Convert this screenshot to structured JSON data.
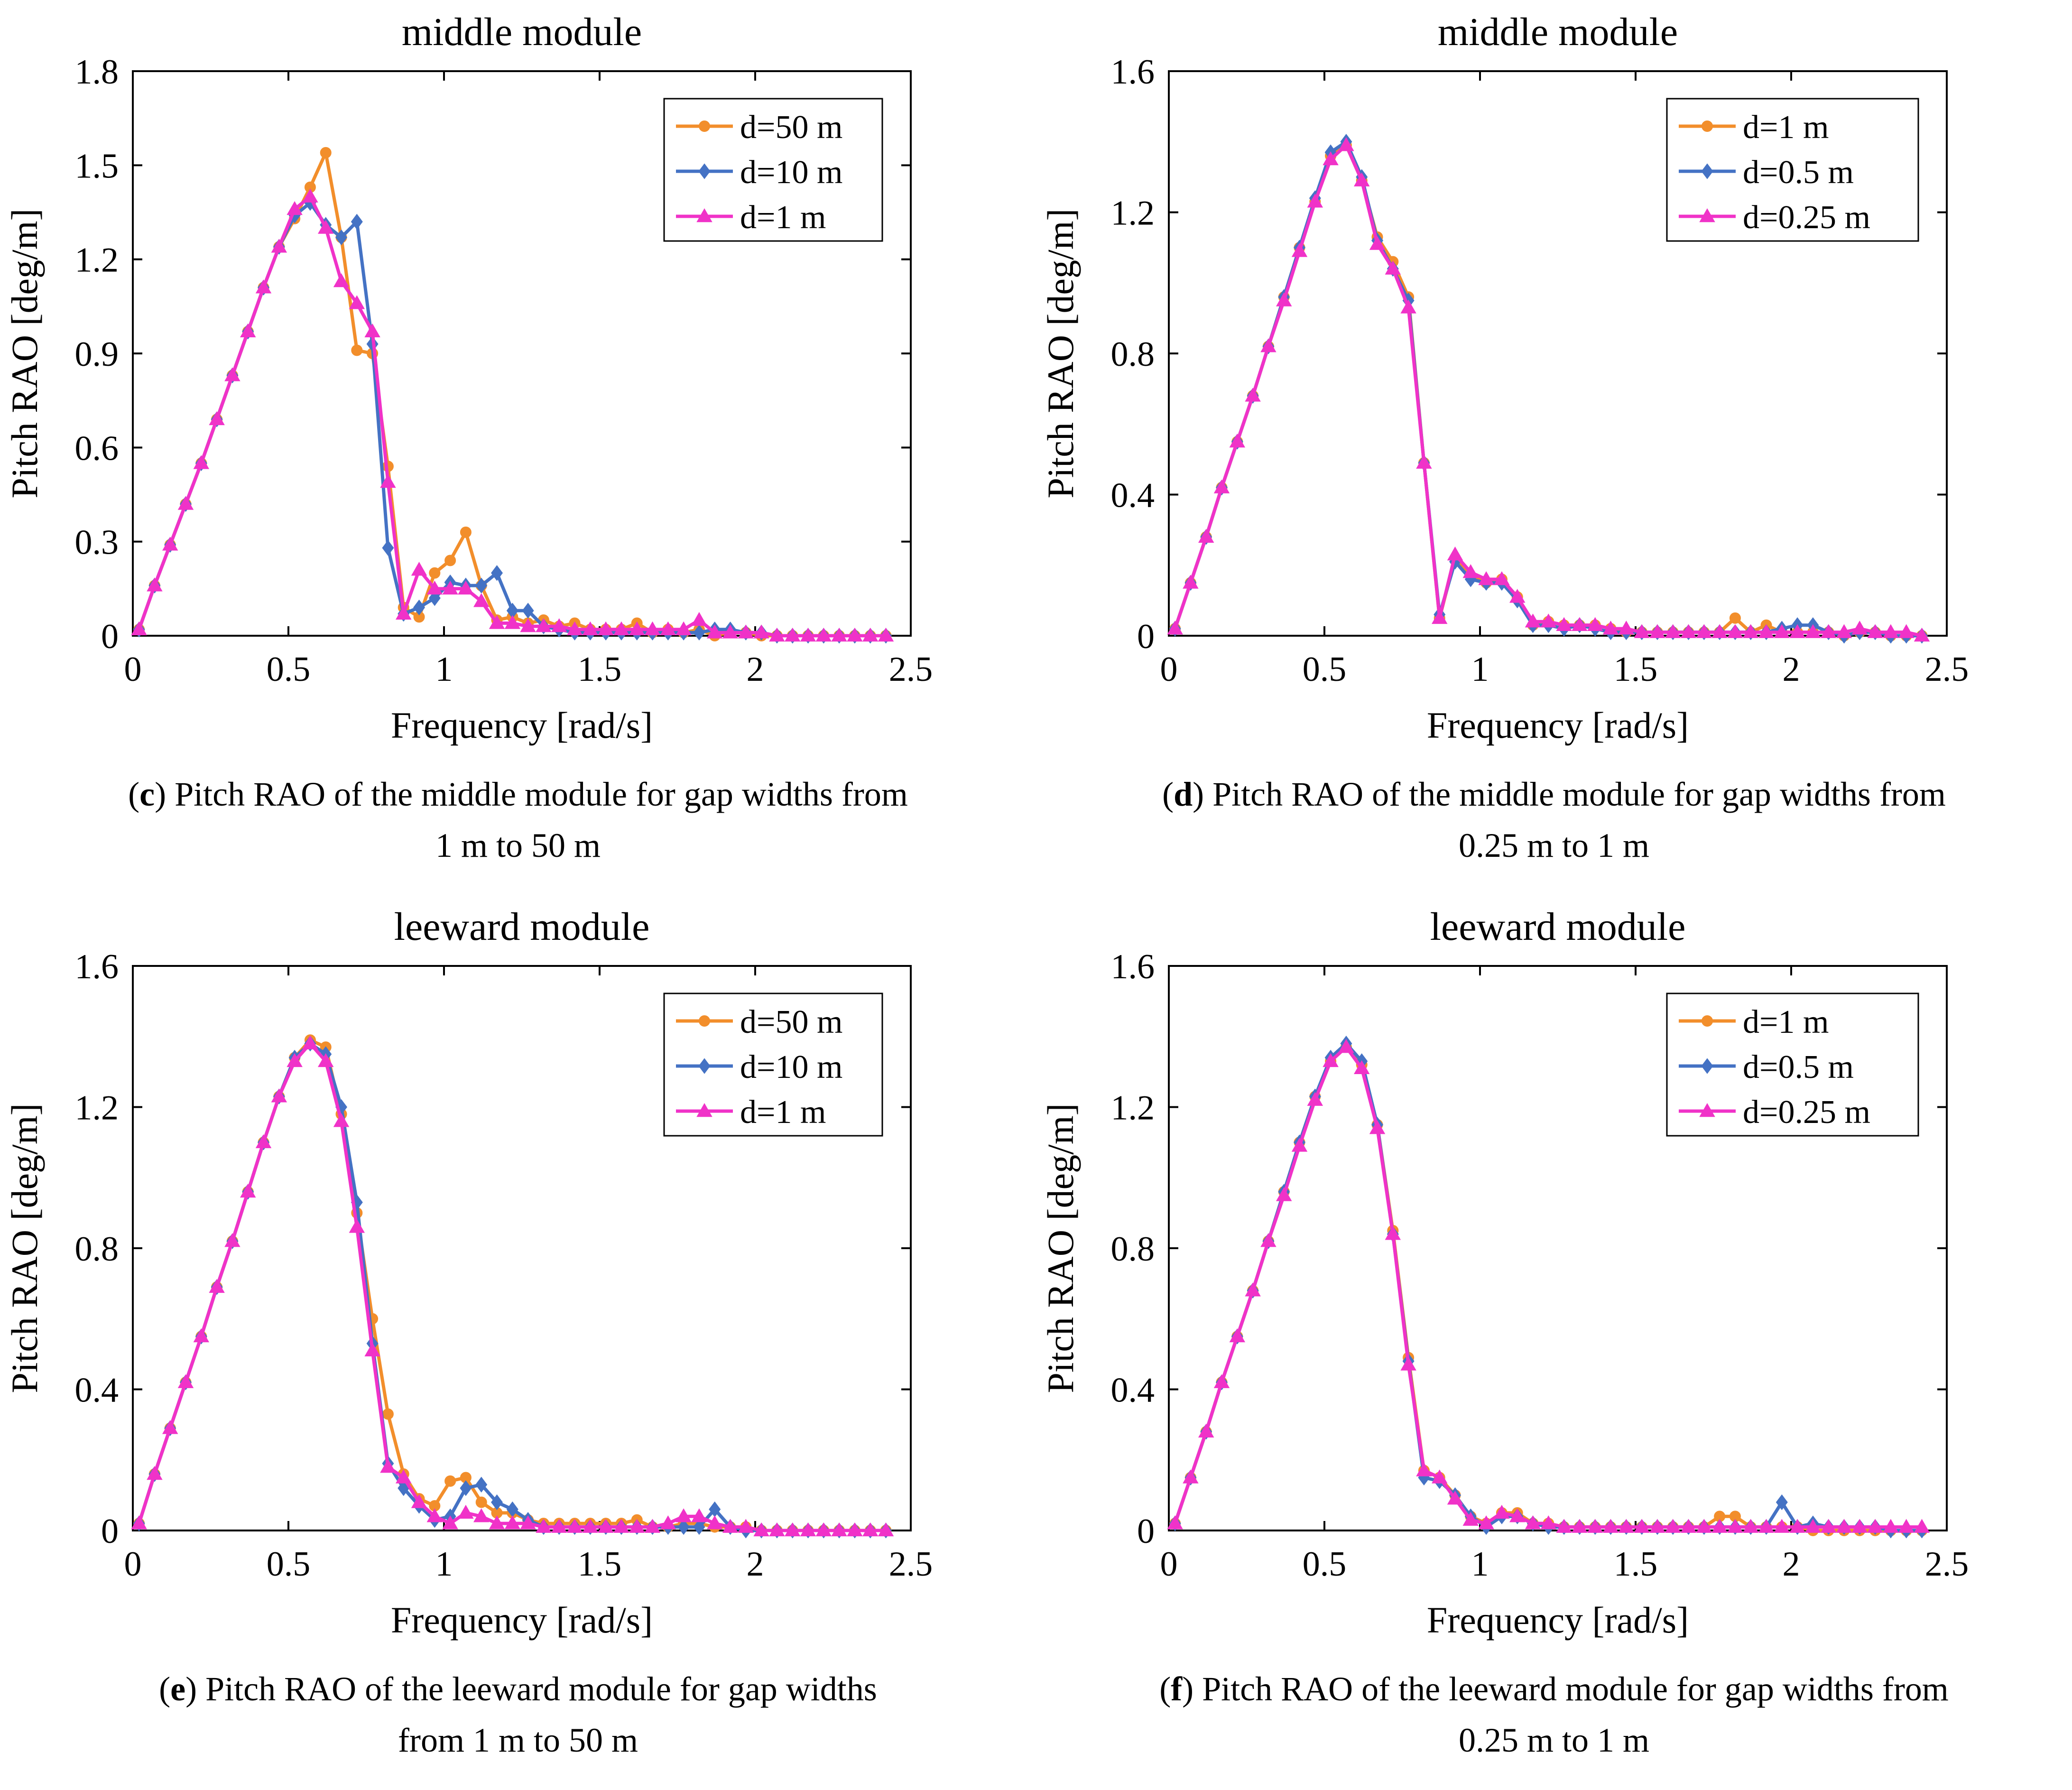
{
  "colors": {
    "orange": "#F28E2B",
    "blue": "#4472C4",
    "magenta": "#F032C8"
  },
  "panels": [
    {
      "caption_letter": "c",
      "caption_text": " Pitch RAO of the middle module for gap widths from",
      "caption_line2": "1 m to 50 m",
      "chart_data": {
        "type": "line",
        "title": "middle module",
        "xlabel": "Frequency [rad/s]",
        "ylabel": "Pitch RAO  [deg/m]",
        "xlim": [
          0,
          2.5
        ],
        "ylim": [
          0,
          1.8
        ],
        "xticks": [
          "0",
          "0.5",
          "1",
          "1.5",
          "2",
          "2.5"
        ],
        "yticks": [
          "0",
          "0.3",
          "0.6",
          "0.9",
          "1.2",
          "1.5",
          "1.8"
        ],
        "legend_position": "top-right",
        "x": [
          0.02,
          0.07,
          0.12,
          0.17,
          0.22,
          0.27,
          0.32,
          0.37,
          0.42,
          0.47,
          0.52,
          0.57,
          0.62,
          0.67,
          0.72,
          0.77,
          0.82,
          0.87,
          0.92,
          0.97,
          1.02,
          1.07,
          1.12,
          1.17,
          1.22,
          1.27,
          1.32,
          1.37,
          1.42,
          1.47,
          1.52,
          1.57,
          1.62,
          1.67,
          1.72,
          1.77,
          1.82,
          1.87,
          1.92,
          1.97,
          2.02,
          2.07,
          2.12,
          2.17,
          2.22,
          2.27,
          2.32,
          2.37,
          2.42
        ],
        "series": [
          {
            "name": "d=50 m",
            "color": "orange",
            "marker": "circle",
            "values": [
              0.02,
              0.16,
              0.29,
              0.42,
              0.55,
              0.69,
              0.83,
              0.97,
              1.11,
              1.24,
              1.33,
              1.43,
              1.54,
              1.27,
              0.91,
              0.9,
              0.54,
              0.09,
              0.06,
              0.2,
              0.24,
              0.33,
              0.16,
              0.05,
              0.06,
              0.04,
              0.05,
              0.03,
              0.04,
              0.02,
              0.02,
              0.02,
              0.04,
              0.01,
              0.02,
              0.01,
              0.02,
              0.0,
              0.01,
              0.01,
              0.0,
              0.0,
              0.0,
              0.0,
              0.0,
              0.0,
              0.0,
              0.0,
              0.0
            ]
          },
          {
            "name": "d=10 m",
            "color": "blue",
            "marker": "diamond",
            "values": [
              0.02,
              0.16,
              0.29,
              0.42,
              0.55,
              0.69,
              0.83,
              0.97,
              1.11,
              1.24,
              1.34,
              1.38,
              1.31,
              1.27,
              1.32,
              0.93,
              0.28,
              0.07,
              0.09,
              0.12,
              0.17,
              0.16,
              0.16,
              0.2,
              0.08,
              0.08,
              0.03,
              0.02,
              0.01,
              0.01,
              0.01,
              0.01,
              0.01,
              0.01,
              0.01,
              0.01,
              0.01,
              0.02,
              0.02,
              0.01,
              0.01,
              0.0,
              0.0,
              0.0,
              0.0,
              0.0,
              0.0,
              0.0,
              0.0
            ]
          },
          {
            "name": "d=1 m",
            "color": "magenta",
            "marker": "triangle",
            "values": [
              0.02,
              0.16,
              0.29,
              0.42,
              0.55,
              0.69,
              0.83,
              0.97,
              1.11,
              1.24,
              1.36,
              1.4,
              1.3,
              1.13,
              1.06,
              0.97,
              0.49,
              0.07,
              0.21,
              0.15,
              0.15,
              0.15,
              0.11,
              0.04,
              0.04,
              0.03,
              0.03,
              0.03,
              0.02,
              0.02,
              0.02,
              0.02,
              0.02,
              0.02,
              0.02,
              0.02,
              0.05,
              0.01,
              0.01,
              0.01,
              0.01,
              0.0,
              0.0,
              0.0,
              0.0,
              0.0,
              0.0,
              0.0,
              0.0
            ]
          }
        ]
      }
    },
    {
      "caption_letter": "d",
      "caption_text": " Pitch RAO of the middle module for gap widths from",
      "caption_line2": "0.25 m to 1 m",
      "chart_data": {
        "type": "line",
        "title": "middle module",
        "xlabel": "Frequency [rad/s]",
        "ylabel": "Pitch RAO  [deg/m]",
        "xlim": [
          0,
          2.5
        ],
        "ylim": [
          0,
          1.6
        ],
        "xticks": [
          "0",
          "0.5",
          "1",
          "1.5",
          "2",
          "2.5"
        ],
        "yticks": [
          "0",
          "0.4",
          "0.8",
          "1.2",
          "1.6"
        ],
        "legend_position": "top-right",
        "x": [
          0.02,
          0.07,
          0.12,
          0.17,
          0.22,
          0.27,
          0.32,
          0.37,
          0.42,
          0.47,
          0.52,
          0.57,
          0.62,
          0.67,
          0.72,
          0.77,
          0.82,
          0.87,
          0.92,
          0.97,
          1.02,
          1.07,
          1.12,
          1.17,
          1.22,
          1.27,
          1.32,
          1.37,
          1.42,
          1.47,
          1.52,
          1.57,
          1.62,
          1.67,
          1.72,
          1.77,
          1.82,
          1.87,
          1.92,
          1.97,
          2.02,
          2.07,
          2.12,
          2.17,
          2.22,
          2.27,
          2.32,
          2.37,
          2.42
        ],
        "series": [
          {
            "name": "d=1 m",
            "color": "orange",
            "marker": "circle",
            "values": [
              0.02,
              0.15,
              0.28,
              0.42,
              0.55,
              0.68,
              0.82,
              0.96,
              1.1,
              1.23,
              1.36,
              1.39,
              1.29,
              1.13,
              1.06,
              0.96,
              0.49,
              0.05,
              0.22,
              0.17,
              0.15,
              0.16,
              0.11,
              0.03,
              0.04,
              0.03,
              0.03,
              0.03,
              0.02,
              0.01,
              0.01,
              0.01,
              0.01,
              0.01,
              0.01,
              0.01,
              0.05,
              0.01,
              0.03,
              0.01,
              0.01,
              0.01,
              0.01,
              0.0,
              0.01,
              0.01,
              0.0,
              0.0,
              0.0
            ]
          },
          {
            "name": "d=0.5 m",
            "color": "blue",
            "marker": "diamond",
            "values": [
              0.02,
              0.15,
              0.28,
              0.42,
              0.55,
              0.68,
              0.82,
              0.96,
              1.1,
              1.24,
              1.37,
              1.4,
              1.3,
              1.12,
              1.04,
              0.95,
              0.49,
              0.06,
              0.21,
              0.16,
              0.15,
              0.15,
              0.1,
              0.03,
              0.03,
              0.02,
              0.03,
              0.02,
              0.01,
              0.01,
              0.01,
              0.01,
              0.01,
              0.01,
              0.01,
              0.01,
              0.01,
              0.01,
              0.01,
              0.02,
              0.03,
              0.03,
              0.01,
              0.0,
              0.01,
              0.01,
              0.0,
              0.0,
              0.0
            ]
          },
          {
            "name": "d=0.25 m",
            "color": "magenta",
            "marker": "triangle",
            "values": [
              0.02,
              0.15,
              0.28,
              0.42,
              0.55,
              0.68,
              0.82,
              0.95,
              1.09,
              1.23,
              1.35,
              1.39,
              1.29,
              1.11,
              1.04,
              0.93,
              0.49,
              0.05,
              0.23,
              0.18,
              0.16,
              0.16,
              0.11,
              0.04,
              0.04,
              0.03,
              0.03,
              0.03,
              0.02,
              0.02,
              0.01,
              0.01,
              0.01,
              0.01,
              0.01,
              0.01,
              0.01,
              0.01,
              0.01,
              0.01,
              0.01,
              0.01,
              0.01,
              0.01,
              0.02,
              0.01,
              0.01,
              0.01,
              0.0
            ]
          }
        ]
      }
    },
    {
      "caption_letter": "e",
      "caption_text": " Pitch RAO of the leeward module for gap widths",
      "caption_line2": "from 1 m to 50 m",
      "chart_data": {
        "type": "line",
        "title": "leeward module",
        "xlabel": "Frequency [rad/s]",
        "ylabel": "Pitch RAO  [deg/m]",
        "xlim": [
          0,
          2.5
        ],
        "ylim": [
          0,
          1.6
        ],
        "xticks": [
          "0",
          "0.5",
          "1",
          "1.5",
          "2",
          "2.5"
        ],
        "yticks": [
          "0",
          "0.4",
          "0.8",
          "1.2",
          "1.6"
        ],
        "legend_position": "top-right",
        "x": [
          0.02,
          0.07,
          0.12,
          0.17,
          0.22,
          0.27,
          0.32,
          0.37,
          0.42,
          0.47,
          0.52,
          0.57,
          0.62,
          0.67,
          0.72,
          0.77,
          0.82,
          0.87,
          0.92,
          0.97,
          1.02,
          1.07,
          1.12,
          1.17,
          1.22,
          1.27,
          1.32,
          1.37,
          1.42,
          1.47,
          1.52,
          1.57,
          1.62,
          1.67,
          1.72,
          1.77,
          1.82,
          1.87,
          1.92,
          1.97,
          2.02,
          2.07,
          2.12,
          2.17,
          2.22,
          2.27,
          2.32,
          2.37,
          2.42
        ],
        "series": [
          {
            "name": "d=50 m",
            "color": "orange",
            "marker": "circle",
            "values": [
              0.02,
              0.16,
              0.29,
              0.42,
              0.55,
              0.69,
              0.82,
              0.96,
              1.1,
              1.23,
              1.34,
              1.39,
              1.37,
              1.18,
              0.9,
              0.6,
              0.33,
              0.16,
              0.09,
              0.07,
              0.14,
              0.15,
              0.08,
              0.05,
              0.05,
              0.03,
              0.02,
              0.02,
              0.02,
              0.02,
              0.02,
              0.02,
              0.03,
              0.01,
              0.01,
              0.02,
              0.02,
              0.01,
              0.01,
              0.01,
              0.0,
              0.0,
              0.0,
              0.0,
              0.0,
              0.0,
              0.0,
              0.0,
              0.0
            ]
          },
          {
            "name": "d=10 m",
            "color": "blue",
            "marker": "diamond",
            "values": [
              0.02,
              0.16,
              0.29,
              0.42,
              0.55,
              0.69,
              0.82,
              0.96,
              1.1,
              1.23,
              1.34,
              1.38,
              1.35,
              1.2,
              0.93,
              0.53,
              0.19,
              0.12,
              0.07,
              0.03,
              0.04,
              0.12,
              0.13,
              0.08,
              0.06,
              0.03,
              0.01,
              0.01,
              0.01,
              0.01,
              0.01,
              0.01,
              0.01,
              0.01,
              0.01,
              0.01,
              0.01,
              0.06,
              0.01,
              0.0,
              0.0,
              0.0,
              0.0,
              0.0,
              0.0,
              0.0,
              0.0,
              0.0,
              0.0
            ]
          },
          {
            "name": "d=1 m",
            "color": "magenta",
            "marker": "triangle",
            "values": [
              0.02,
              0.16,
              0.29,
              0.42,
              0.55,
              0.69,
              0.82,
              0.96,
              1.1,
              1.23,
              1.33,
              1.38,
              1.33,
              1.16,
              0.86,
              0.51,
              0.18,
              0.15,
              0.08,
              0.04,
              0.02,
              0.05,
              0.04,
              0.02,
              0.02,
              0.02,
              0.01,
              0.01,
              0.01,
              0.01,
              0.01,
              0.01,
              0.01,
              0.01,
              0.02,
              0.04,
              0.04,
              0.02,
              0.01,
              0.01,
              0.0,
              0.0,
              0.0,
              0.0,
              0.0,
              0.0,
              0.0,
              0.0,
              0.0
            ]
          }
        ]
      }
    },
    {
      "caption_letter": "f",
      "caption_text": " Pitch RAO of the leeward module for gap widths from",
      "caption_line2": "0.25 m to 1 m",
      "chart_data": {
        "type": "line",
        "title": "leeward module",
        "xlabel": "Frequency [rad/s]",
        "ylabel": "Pitch RAO  [deg/m]",
        "xlim": [
          0,
          2.5
        ],
        "ylim": [
          0,
          1.6
        ],
        "xticks": [
          "0",
          "0.5",
          "1",
          "1.5",
          "2",
          "2.5"
        ],
        "yticks": [
          "0",
          "0.4",
          "0.8",
          "1.2",
          "1.6"
        ],
        "legend_position": "top-right",
        "x": [
          0.02,
          0.07,
          0.12,
          0.17,
          0.22,
          0.27,
          0.32,
          0.37,
          0.42,
          0.47,
          0.52,
          0.57,
          0.62,
          0.67,
          0.72,
          0.77,
          0.82,
          0.87,
          0.92,
          0.97,
          1.02,
          1.07,
          1.12,
          1.17,
          1.22,
          1.27,
          1.32,
          1.37,
          1.42,
          1.47,
          1.52,
          1.57,
          1.62,
          1.67,
          1.72,
          1.77,
          1.82,
          1.87,
          1.92,
          1.97,
          2.02,
          2.07,
          2.12,
          2.17,
          2.22,
          2.27,
          2.32,
          2.37,
          2.42
        ],
        "series": [
          {
            "name": "d=1 m",
            "color": "orange",
            "marker": "circle",
            "values": [
              0.02,
              0.15,
              0.28,
              0.42,
              0.55,
              0.68,
              0.82,
              0.96,
              1.1,
              1.23,
              1.33,
              1.37,
              1.32,
              1.15,
              0.85,
              0.49,
              0.17,
              0.15,
              0.1,
              0.04,
              0.02,
              0.05,
              0.05,
              0.02,
              0.02,
              0.01,
              0.01,
              0.01,
              0.01,
              0.01,
              0.01,
              0.01,
              0.01,
              0.01,
              0.01,
              0.04,
              0.04,
              0.01,
              0.01,
              0.01,
              0.01,
              0.0,
              0.0,
              0.0,
              0.0,
              0.0,
              0.0,
              0.0,
              0.0
            ]
          },
          {
            "name": "d=0.5 m",
            "color": "blue",
            "marker": "diamond",
            "values": [
              0.02,
              0.15,
              0.28,
              0.42,
              0.55,
              0.68,
              0.82,
              0.96,
              1.1,
              1.23,
              1.34,
              1.38,
              1.33,
              1.15,
              0.84,
              0.48,
              0.15,
              0.14,
              0.1,
              0.04,
              0.01,
              0.04,
              0.04,
              0.02,
              0.01,
              0.01,
              0.01,
              0.01,
              0.01,
              0.01,
              0.01,
              0.01,
              0.01,
              0.01,
              0.01,
              0.01,
              0.01,
              0.01,
              0.01,
              0.08,
              0.01,
              0.02,
              0.01,
              0.01,
              0.01,
              0.01,
              0.0,
              0.0,
              0.0
            ]
          },
          {
            "name": "d=0.25 m",
            "color": "magenta",
            "marker": "triangle",
            "values": [
              0.02,
              0.15,
              0.28,
              0.42,
              0.55,
              0.68,
              0.82,
              0.95,
              1.09,
              1.22,
              1.33,
              1.37,
              1.31,
              1.14,
              0.84,
              0.47,
              0.17,
              0.15,
              0.09,
              0.03,
              0.02,
              0.05,
              0.04,
              0.02,
              0.02,
              0.01,
              0.01,
              0.01,
              0.01,
              0.01,
              0.01,
              0.01,
              0.01,
              0.01,
              0.01,
              0.01,
              0.01,
              0.01,
              0.01,
              0.01,
              0.01,
              0.01,
              0.01,
              0.01,
              0.01,
              0.01,
              0.01,
              0.01,
              0.01
            ]
          }
        ]
      }
    }
  ]
}
